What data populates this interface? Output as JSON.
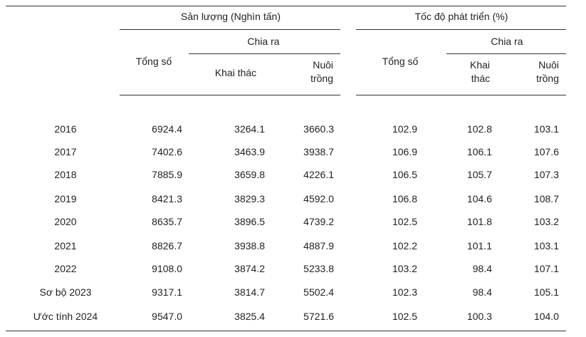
{
  "header": {
    "group1": "Sản lượng (Nghìn tấn)",
    "group2": "Tốc độ phát triển (%)",
    "sub1": "Chia ra",
    "sub2": "Chia ra",
    "total1": "Tổng số",
    "total2": "Tổng số",
    "khai_thac1": "Khai thác",
    "nuoi_trong1_line1": "Nuôi",
    "nuoi_trong1_line2": "trồng",
    "khai_thac2_line1": "Khai",
    "khai_thac2_line2": "thác",
    "nuoi_trong2_line1": "Nuôi",
    "nuoi_trong2_line2": "trồng"
  },
  "rows": [
    {
      "year": "2016",
      "total": "6924.4",
      "kt": "3264.1",
      "nt": "3660.3",
      "g_total": "102.9",
      "g_kt": "102.8",
      "g_nt": "103.1"
    },
    {
      "year": "2017",
      "total": "7402.6",
      "kt": "3463.9",
      "nt": "3938.7",
      "g_total": "106.9",
      "g_kt": "106.1",
      "g_nt": "107.6"
    },
    {
      "year": "2018",
      "total": "7885.9",
      "kt": "3659.8",
      "nt": "4226.1",
      "g_total": "106.5",
      "g_kt": "105.7",
      "g_nt": "107.3"
    },
    {
      "year": "2019",
      "total": "8421.3",
      "kt": "3829.3",
      "nt": "4592.0",
      "g_total": "106.8",
      "g_kt": "104.6",
      "g_nt": "108.7"
    },
    {
      "year": "2020",
      "total": "8635.7",
      "kt": "3896.5",
      "nt": "4739.2",
      "g_total": "102.5",
      "g_kt": "101.8",
      "g_nt": "103.2"
    },
    {
      "year": "2021",
      "total": "8826.7",
      "kt": "3938.8",
      "nt": "4887.9",
      "g_total": "102.2",
      "g_kt": "101.1",
      "g_nt": "103.1"
    },
    {
      "year": "2022",
      "total": "9108.0",
      "kt": "3874.2",
      "nt": "5233.8",
      "g_total": "103.2",
      "g_kt": "98.4",
      "g_nt": "107.1"
    },
    {
      "year": "Sơ bộ 2023",
      "total": "9317.1",
      "kt": "3814.7",
      "nt": "5502.4",
      "g_total": "102.3",
      "g_kt": "98.4",
      "g_nt": "105.1"
    },
    {
      "year": "Ước tính 2024",
      "total": "9547.0",
      "kt": "3825.4",
      "nt": "5721.6",
      "g_total": "102.5",
      "g_kt": "100.3",
      "g_nt": "104.0"
    }
  ]
}
